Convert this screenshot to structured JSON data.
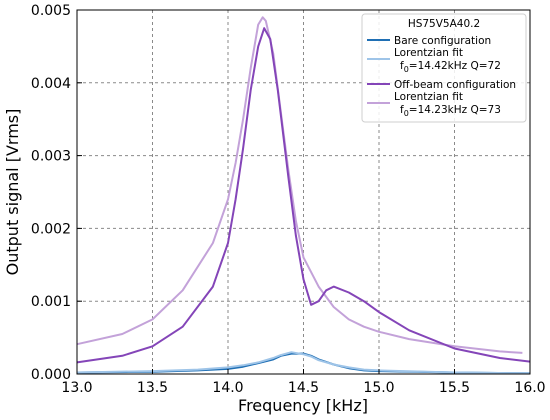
{
  "chart_data": {
    "type": "line",
    "title": "",
    "xlabel": "Frequency [kHz]",
    "ylabel": "Output signal [Vrms]",
    "xlim": [
      13.0,
      16.0
    ],
    "ylim": [
      0.0,
      0.005
    ],
    "xticks": [
      "13.0",
      "13.5",
      "14.0",
      "14.5",
      "15.0",
      "15.5",
      "16.0"
    ],
    "yticks": [
      "0.000",
      "0.001",
      "0.002",
      "0.003",
      "0.004",
      "0.005"
    ],
    "grid": true,
    "legend": {
      "title": "HS75V5A40.2",
      "placement": "top-right"
    },
    "series": [
      {
        "name": "Bare configuration",
        "color": "#1f6fb4",
        "x": [
          13.0,
          13.5,
          13.8,
          14.0,
          14.1,
          14.2,
          14.3,
          14.35,
          14.42,
          14.5,
          14.55,
          14.6,
          14.7,
          14.8,
          14.9,
          15.0,
          15.5,
          16.0
        ],
        "y": [
          2e-05,
          3e-05,
          5e-05,
          7e-05,
          0.0001,
          0.00015,
          0.0002,
          0.00025,
          0.00028,
          0.00028,
          0.00025,
          0.0002,
          0.00013,
          8e-05,
          5e-05,
          4e-05,
          2e-05,
          1e-05
        ]
      },
      {
        "name": "Lorentzian fit",
        "name_sub": "f0=14.42kHz Q=72",
        "color": "#9ec4e8",
        "x": [
          13.0,
          13.5,
          13.8,
          14.0,
          14.1,
          14.2,
          14.3,
          14.35,
          14.42,
          14.5,
          14.55,
          14.6,
          14.7,
          14.8,
          14.9,
          15.0,
          15.5,
          16.0
        ],
        "y": [
          2e-05,
          4e-05,
          6e-05,
          9e-05,
          0.00012,
          0.00016,
          0.00022,
          0.00026,
          0.0003,
          0.00027,
          0.00024,
          0.00019,
          0.00013,
          9e-05,
          6e-05,
          5e-05,
          2e-05,
          1e-05
        ]
      },
      {
        "name": "Off-beam configuration",
        "color": "#8445b8",
        "x": [
          13.0,
          13.3,
          13.5,
          13.7,
          13.9,
          14.0,
          14.05,
          14.1,
          14.15,
          14.2,
          14.24,
          14.28,
          14.33,
          14.4,
          14.45,
          14.5,
          14.55,
          14.6,
          14.65,
          14.7,
          14.8,
          14.9,
          15.0,
          15.2,
          15.5,
          15.8,
          16.0
        ],
        "y": [
          0.00016,
          0.00025,
          0.00038,
          0.00065,
          0.0012,
          0.0018,
          0.0024,
          0.0031,
          0.0039,
          0.0045,
          0.00475,
          0.0046,
          0.0039,
          0.0027,
          0.0019,
          0.0013,
          0.00095,
          0.001,
          0.00115,
          0.0012,
          0.00112,
          0.001,
          0.00085,
          0.0006,
          0.00035,
          0.00022,
          0.00017
        ]
      },
      {
        "name": "Lorentzian fit",
        "name_sub": "f0=14.23kHz Q=73",
        "color": "#c3a2d9",
        "x": [
          13.0,
          13.3,
          13.5,
          13.7,
          13.9,
          14.0,
          14.05,
          14.1,
          14.15,
          14.2,
          14.23,
          14.25,
          14.3,
          14.35,
          14.4,
          14.45,
          14.5,
          14.55,
          14.6,
          14.7,
          14.8,
          14.9,
          15.0,
          15.2,
          15.5,
          15.8,
          15.95
        ],
        "y": [
          0.00041,
          0.00055,
          0.00075,
          0.00115,
          0.0018,
          0.0024,
          0.0029,
          0.0035,
          0.0042,
          0.0048,
          0.0049,
          0.00485,
          0.0044,
          0.0036,
          0.0028,
          0.0021,
          0.0016,
          0.0014,
          0.0012,
          0.00092,
          0.00075,
          0.00065,
          0.00058,
          0.00048,
          0.00038,
          0.00031,
          0.00029
        ]
      }
    ]
  }
}
